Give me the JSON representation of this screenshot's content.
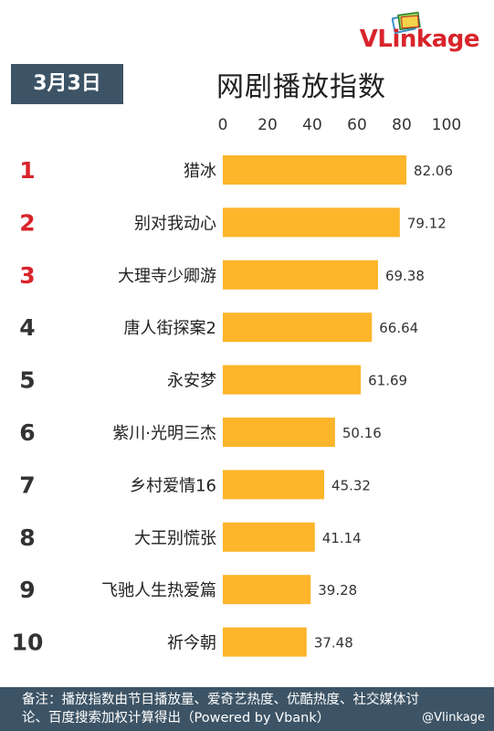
{
  "logo": {
    "brand": "VLinkage"
  },
  "header": {
    "date": "3月3日",
    "title": "网剧播放指数"
  },
  "chart_data": {
    "type": "bar",
    "orientation": "horizontal",
    "title": "网剧播放指数",
    "xlim": [
      0,
      100
    ],
    "x_ticks": [
      "0",
      "20",
      "40",
      "60",
      "80",
      "100"
    ],
    "ranks": [
      "1",
      "2",
      "3",
      "4",
      "5",
      "6",
      "7",
      "8",
      "9",
      "10"
    ],
    "categories": [
      "猎冰",
      "别对我动心",
      "大理寺少卿游",
      "唐人街探案2",
      "永安梦",
      "紫川·光明三杰",
      "乡村爱情16",
      "大王别慌张",
      "飞驰人生热爱篇",
      "祈今朝"
    ],
    "values": [
      82.06,
      79.12,
      69.38,
      66.64,
      61.69,
      50.16,
      45.32,
      41.14,
      39.28,
      37.48
    ],
    "value_labels": [
      "82.06",
      "79.12",
      "69.38",
      "66.64",
      "61.69",
      "50.16",
      "45.32",
      "41.14",
      "39.28",
      "37.48"
    ],
    "bar_color": "#FDB52A",
    "top_rank_color": "#D8242B",
    "rank_color": "#333333",
    "grid": false
  },
  "footer": {
    "note_line1": "备注：播放指数由节目播放量、爱奇艺热度、优酷热度、社交媒体讨",
    "note_line2": "论、百度搜索加权计算得出（Powered by Vbank）",
    "watermark": "@Vlinkage"
  },
  "colors": {
    "header_bg": "#3D5466",
    "brand_red": "#D8242B"
  }
}
